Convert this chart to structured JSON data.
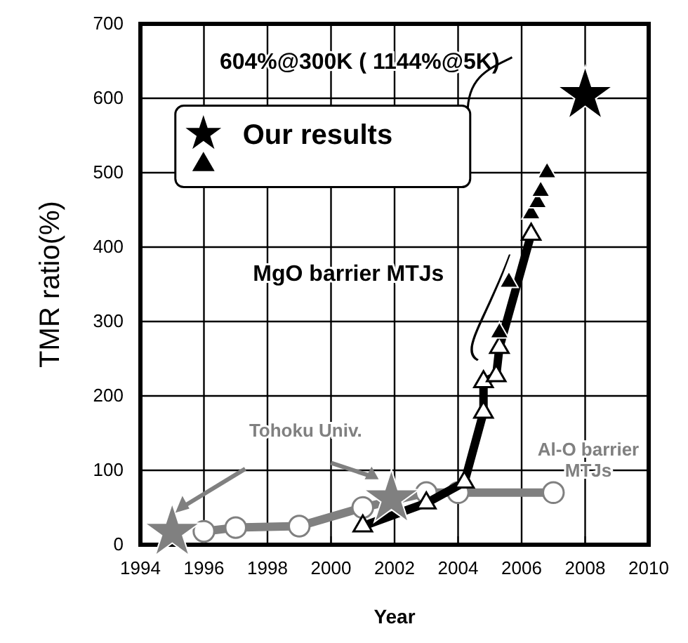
{
  "chart_data": {
    "type": "line",
    "xlabel": "Year",
    "ylabel": "TMR ratio(%)",
    "xlim": [
      1994,
      2010
    ],
    "xticks": [
      1994,
      1996,
      1998,
      2000,
      2002,
      2004,
      2006,
      2008,
      2010
    ],
    "ylim": [
      0,
      700
    ],
    "yticks": [
      0,
      100,
      200,
      300,
      400,
      500,
      600,
      700
    ],
    "grid": true,
    "legend": "top left",
    "series": [
      {
        "color": "#808080",
        "marker": "circle",
        "x": [
          1996,
          1997,
          1999,
          2001,
          2003,
          2004,
          2007
        ],
        "values": [
          18,
          23,
          25,
          50,
          70,
          70,
          70
        ]
      },
      {
        "color": "#000000",
        "marker": "triangle",
        "x": [
          2001,
          2003,
          2004.2,
          2004.8,
          2004.8,
          2005.2,
          2005.3,
          2006.3
        ],
        "values": [
          25,
          56,
          84,
          178,
          219,
          227,
          265,
          417
        ]
      },
      {
        "type": "scatter",
        "color": "#808080",
        "marker": "star",
        "x": [
          1995,
          2001.9
        ],
        "values": [
          17,
          62
        ]
      },
      {
        "type": "scatter",
        "name": "Our results",
        "color": "#000000",
        "marker": "star",
        "x": [
          2008
        ],
        "values": [
          604
        ]
      },
      {
        "type": "scatter",
        "color": "#000000",
        "marker": "triangle",
        "x": [
          2005.3,
          2005.6,
          2006.3,
          2006.5,
          2006.6,
          2006.8
        ],
        "values": [
          285,
          353,
          445,
          460,
          475,
          500
        ]
      }
    ],
    "annotations": [
      "604%@300K ( 1144%@5K)",
      "MgO barrier MTJs",
      "Tohoku Univ.",
      "Al-O barrier\nMTJs"
    ]
  }
}
